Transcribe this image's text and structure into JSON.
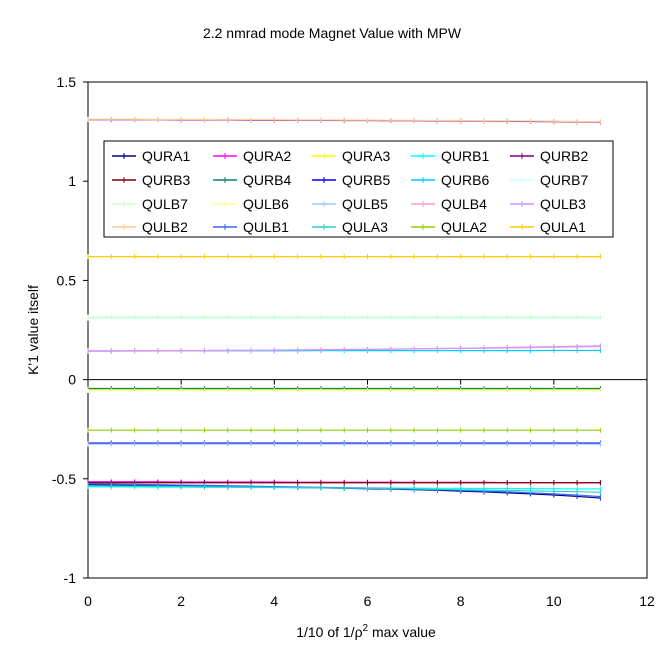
{
  "chart_data": {
    "type": "line",
    "title": "2.2 nmrad mode Magnet Value with MPW",
    "xlabel": "1/10 of 1/ρ² max value",
    "xlabel_prefix": "1/10 of 1/ρ",
    "xlabel_sup": "2",
    "xlabel_suffix": " max value",
    "ylabel": "K'1 value itself",
    "xlim": [
      0,
      12
    ],
    "ylim": [
      -1,
      1.5
    ],
    "xticks": [
      "0",
      "2",
      "4",
      "6",
      "8",
      "10",
      "12"
    ],
    "yticks": [
      "-1",
      "-0.5",
      "0",
      "0.5",
      "1",
      "1.5"
    ],
    "grid": false,
    "legend_position": "upper-center",
    "x": [
      0,
      0.5,
      1,
      1.5,
      2,
      2.5,
      3,
      3.5,
      4,
      4.5,
      5,
      5.5,
      6,
      6.5,
      7,
      7.5,
      8,
      8.5,
      9,
      9.5,
      10,
      10.5,
      11
    ],
    "series": [
      {
        "name": "QURA1",
        "color": "#000080",
        "values": [
          -0.53,
          -0.532,
          -0.533,
          -0.535,
          -0.537,
          -0.538,
          -0.54,
          -0.541,
          -0.542,
          -0.544,
          -0.546,
          -0.548,
          -0.55,
          -0.552,
          -0.555,
          -0.558,
          -0.562,
          -0.566,
          -0.571,
          -0.576,
          -0.582,
          -0.589,
          -0.597
        ]
      },
      {
        "name": "QURA2",
        "color": "#ff00ff",
        "values": [
          -0.515,
          -0.515,
          -0.515,
          -0.515,
          -0.516,
          -0.516,
          -0.516,
          -0.516,
          -0.516,
          -0.517,
          -0.517,
          -0.517,
          -0.517,
          -0.517,
          -0.518,
          -0.518,
          -0.518,
          -0.518,
          -0.519,
          -0.519,
          -0.519,
          -0.52,
          -0.52
        ]
      },
      {
        "name": "QURA3",
        "color": "#ffff00",
        "values": [
          -0.05,
          -0.05,
          -0.05,
          -0.05,
          -0.05,
          -0.05,
          -0.05,
          -0.05,
          -0.05,
          -0.05,
          -0.05,
          -0.05,
          -0.05,
          -0.05,
          -0.05,
          -0.05,
          -0.05,
          -0.05,
          -0.05,
          -0.05,
          -0.05,
          -0.05,
          -0.05
        ]
      },
      {
        "name": "QURB1",
        "color": "#00ffff",
        "values": [
          -0.54,
          -0.541,
          -0.541,
          -0.542,
          -0.542,
          -0.543,
          -0.543,
          -0.544,
          -0.544,
          -0.545,
          -0.545,
          -0.546,
          -0.546,
          -0.547,
          -0.547,
          -0.548,
          -0.548,
          -0.549,
          -0.549,
          -0.55,
          -0.55,
          -0.551,
          -0.551
        ]
      },
      {
        "name": "QURB2",
        "color": "#800080",
        "values": [
          1.31,
          1.31,
          1.31,
          1.31,
          1.309,
          1.309,
          1.309,
          1.308,
          1.308,
          1.307,
          1.307,
          1.306,
          1.306,
          1.305,
          1.305,
          1.304,
          1.304,
          1.303,
          1.302,
          1.301,
          1.3,
          1.299,
          1.298
        ]
      },
      {
        "name": "QURB3",
        "color": "#800000",
        "values": [
          -0.52,
          -0.52,
          -0.52,
          -0.52,
          -0.52,
          -0.52,
          -0.52,
          -0.52,
          -0.52,
          -0.52,
          -0.52,
          -0.52,
          -0.52,
          -0.52,
          -0.52,
          -0.52,
          -0.52,
          -0.52,
          -0.52,
          -0.52,
          -0.52,
          -0.52,
          -0.52
        ]
      },
      {
        "name": "QURB4",
        "color": "#008080",
        "values": [
          -0.045,
          -0.045,
          -0.045,
          -0.045,
          -0.045,
          -0.045,
          -0.045,
          -0.045,
          -0.045,
          -0.045,
          -0.045,
          -0.045,
          -0.045,
          -0.045,
          -0.045,
          -0.045,
          -0.045,
          -0.045,
          -0.045,
          -0.045,
          -0.045,
          -0.045,
          -0.045
        ]
      },
      {
        "name": "QURB5",
        "color": "#0000ff",
        "values": [
          -0.32,
          -0.32,
          -0.32,
          -0.32,
          -0.32,
          -0.32,
          -0.32,
          -0.32,
          -0.32,
          -0.32,
          -0.32,
          -0.32,
          -0.32,
          -0.32,
          -0.32,
          -0.32,
          -0.32,
          -0.32,
          -0.32,
          -0.32,
          -0.32,
          -0.32,
          -0.32
        ]
      },
      {
        "name": "QURB6",
        "color": "#00ccff",
        "values": [
          0.145,
          0.145,
          0.145,
          0.145,
          0.145,
          0.145,
          0.145,
          0.145,
          0.145,
          0.145,
          0.146,
          0.146,
          0.146,
          0.146,
          0.146,
          0.146,
          0.146,
          0.146,
          0.146,
          0.146,
          0.147,
          0.147,
          0.147
        ]
      },
      {
        "name": "QURB7",
        "color": "#ccffff",
        "values": [
          0.31,
          0.31,
          0.31,
          0.31,
          0.31,
          0.31,
          0.31,
          0.31,
          0.31,
          0.31,
          0.31,
          0.31,
          0.31,
          0.31,
          0.31,
          0.31,
          0.31,
          0.31,
          0.31,
          0.31,
          0.31,
          0.31,
          0.31
        ]
      },
      {
        "name": "QULB7",
        "color": "#ccffcc",
        "values": [
          0.315,
          0.315,
          0.315,
          0.315,
          0.315,
          0.315,
          0.315,
          0.315,
          0.315,
          0.315,
          0.315,
          0.315,
          0.315,
          0.315,
          0.315,
          0.315,
          0.315,
          0.315,
          0.315,
          0.315,
          0.315,
          0.315,
          0.315
        ]
      },
      {
        "name": "QULB6",
        "color": "#ffff99",
        "values": [
          -0.055,
          -0.055,
          -0.055,
          -0.055,
          -0.055,
          -0.055,
          -0.055,
          -0.055,
          -0.055,
          -0.055,
          -0.055,
          -0.055,
          -0.055,
          -0.055,
          -0.055,
          -0.055,
          -0.055,
          -0.055,
          -0.055,
          -0.055,
          -0.055,
          -0.055,
          -0.055
        ]
      },
      {
        "name": "QULB5",
        "color": "#99ccff",
        "values": [
          -0.325,
          -0.325,
          -0.325,
          -0.325,
          -0.325,
          -0.325,
          -0.325,
          -0.325,
          -0.325,
          -0.325,
          -0.325,
          -0.325,
          -0.325,
          -0.325,
          -0.325,
          -0.325,
          -0.325,
          -0.325,
          -0.325,
          -0.325,
          -0.325,
          -0.325,
          -0.325
        ]
      },
      {
        "name": "QULB4",
        "color": "#ff99cc",
        "values": [
          0.145,
          0.145,
          0.146,
          0.146,
          0.147,
          0.147,
          0.148,
          0.148,
          0.149,
          0.15,
          0.151,
          0.152,
          0.153,
          0.154,
          0.155,
          0.156,
          0.157,
          0.158,
          0.159,
          0.161,
          0.163,
          0.165,
          0.167
        ]
      },
      {
        "name": "QULB3",
        "color": "#cc99ff",
        "values": [
          0.143,
          0.143,
          0.144,
          0.144,
          0.145,
          0.145,
          0.146,
          0.147,
          0.148,
          0.149,
          0.15,
          0.151,
          0.152,
          0.153,
          0.155,
          0.157,
          0.158,
          0.16,
          0.162,
          0.164,
          0.166,
          0.168,
          0.17
        ]
      },
      {
        "name": "QULB2",
        "color": "#ffcc99",
        "values": [
          1.312,
          1.312,
          1.312,
          1.311,
          1.311,
          1.311,
          1.31,
          1.31,
          1.31,
          1.309,
          1.309,
          1.308,
          1.308,
          1.307,
          1.307,
          1.306,
          1.306,
          1.305,
          1.304,
          1.303,
          1.302,
          1.301,
          1.3
        ]
      },
      {
        "name": "QULB1",
        "color": "#3366ff",
        "values": [
          -0.525,
          -0.527,
          -0.528,
          -0.53,
          -0.532,
          -0.533,
          -0.535,
          -0.537,
          -0.539,
          -0.541,
          -0.543,
          -0.545,
          -0.547,
          -0.549,
          -0.552,
          -0.555,
          -0.558,
          -0.562,
          -0.566,
          -0.571,
          -0.576,
          -0.582,
          -0.59
        ]
      },
      {
        "name": "QULA3",
        "color": "#33cccc",
        "values": [
          -0.535,
          -0.536,
          -0.537,
          -0.538,
          -0.539,
          -0.54,
          -0.541,
          -0.542,
          -0.543,
          -0.544,
          -0.545,
          -0.547,
          -0.548,
          -0.55,
          -0.551,
          -0.553,
          -0.555,
          -0.557,
          -0.559,
          -0.561,
          -0.563,
          -0.565,
          -0.568
        ]
      },
      {
        "name": "QULA2",
        "color": "#99cc00",
        "values": [
          -0.255,
          -0.255,
          -0.255,
          -0.255,
          -0.255,
          -0.255,
          -0.255,
          -0.255,
          -0.255,
          -0.255,
          -0.255,
          -0.255,
          -0.255,
          -0.255,
          -0.255,
          -0.255,
          -0.255,
          -0.255,
          -0.255,
          -0.255,
          -0.255,
          -0.255,
          -0.255
        ]
      },
      {
        "name": "QULA1",
        "color": "#ffcc00",
        "values": [
          0.62,
          0.62,
          0.62,
          0.62,
          0.62,
          0.62,
          0.62,
          0.62,
          0.62,
          0.62,
          0.62,
          0.62,
          0.62,
          0.62,
          0.62,
          0.62,
          0.62,
          0.62,
          0.62,
          0.62,
          0.62,
          0.62,
          0.62
        ]
      }
    ]
  }
}
